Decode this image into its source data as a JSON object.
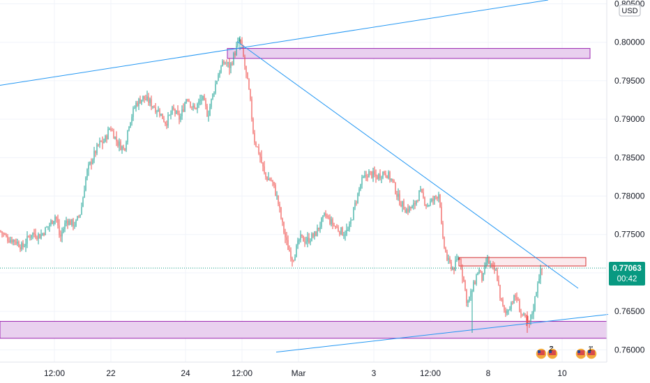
{
  "chart_data": {
    "type": "candlestick",
    "currency_label": "USD",
    "y_axis": {
      "min": 0.7575,
      "max": 0.8055,
      "ticks": [
        "0.80500",
        "0.80000",
        "0.79500",
        "0.79000",
        "0.78500",
        "0.78000",
        "0.77500",
        "0.77000",
        "0.76500",
        "0.76000"
      ],
      "tick_values": [
        0.805,
        0.8,
        0.795,
        0.79,
        0.785,
        0.78,
        0.775,
        0.77,
        0.765,
        0.76
      ]
    },
    "x_axis": {
      "ticks": [
        "12:00",
        "22",
        "24",
        "12:00",
        "Mar",
        "3",
        "12:00",
        "8",
        "10"
      ]
    },
    "current_price": {
      "value": 0.77063,
      "label": "0.77063",
      "countdown": "00:42"
    },
    "price_path": [
      [
        0,
        0.7755
      ],
      [
        10,
        0.7745
      ],
      [
        22,
        0.7742
      ],
      [
        32,
        0.7733
      ],
      [
        45,
        0.7752
      ],
      [
        58,
        0.7748
      ],
      [
        70,
        0.7762
      ],
      [
        80,
        0.7775
      ],
      [
        86,
        0.7745
      ],
      [
        95,
        0.7768
      ],
      [
        108,
        0.7763
      ],
      [
        116,
        0.778
      ],
      [
        124,
        0.783
      ],
      [
        132,
        0.7848
      ],
      [
        142,
        0.7868
      ],
      [
        150,
        0.7872
      ],
      [
        158,
        0.789
      ],
      [
        168,
        0.787
      ],
      [
        178,
        0.786
      ],
      [
        185,
        0.7895
      ],
      [
        195,
        0.792
      ],
      [
        205,
        0.7928
      ],
      [
        215,
        0.7922
      ],
      [
        228,
        0.791
      ],
      [
        238,
        0.7895
      ],
      [
        248,
        0.7912
      ],
      [
        258,
        0.79
      ],
      [
        268,
        0.793
      ],
      [
        278,
        0.7912
      ],
      [
        290,
        0.7928
      ],
      [
        298,
        0.7905
      ],
      [
        306,
        0.7935
      ],
      [
        314,
        0.7962
      ],
      [
        322,
        0.7975
      ],
      [
        330,
        0.7968
      ],
      [
        338,
        0.799
      ],
      [
        344,
        0.8005
      ],
      [
        350,
        0.7975
      ],
      [
        358,
        0.793
      ],
      [
        364,
        0.7875
      ],
      [
        372,
        0.7855
      ],
      [
        380,
        0.7825
      ],
      [
        390,
        0.782
      ],
      [
        398,
        0.7795
      ],
      [
        405,
        0.7762
      ],
      [
        412,
        0.7735
      ],
      [
        420,
        0.7718
      ],
      [
        430,
        0.7745
      ],
      [
        440,
        0.7742
      ],
      [
        452,
        0.775
      ],
      [
        466,
        0.7775
      ],
      [
        480,
        0.776
      ],
      [
        492,
        0.7752
      ],
      [
        500,
        0.7755
      ],
      [
        508,
        0.7785
      ],
      [
        518,
        0.7818
      ],
      [
        528,
        0.783
      ],
      [
        540,
        0.7825
      ],
      [
        552,
        0.7832
      ],
      [
        562,
        0.782
      ],
      [
        572,
        0.7795
      ],
      [
        582,
        0.7782
      ],
      [
        592,
        0.7785
      ],
      [
        602,
        0.7805
      ],
      [
        612,
        0.7788
      ],
      [
        622,
        0.7795
      ],
      [
        630,
        0.7805
      ],
      [
        634,
        0.7745
      ],
      [
        642,
        0.7715
      ],
      [
        650,
        0.7705
      ],
      [
        658,
        0.7722
      ],
      [
        664,
        0.7695
      ],
      [
        670,
        0.766
      ],
      [
        678,
        0.768
      ],
      [
        686,
        0.7705
      ],
      [
        692,
        0.769
      ],
      [
        698,
        0.7718
      ],
      [
        706,
        0.7705
      ],
      [
        712,
        0.77
      ],
      [
        718,
        0.7665
      ],
      [
        724,
        0.7645
      ],
      [
        732,
        0.766
      ],
      [
        740,
        0.767
      ],
      [
        746,
        0.765
      ],
      [
        752,
        0.764
      ],
      [
        758,
        0.7632
      ],
      [
        765,
        0.7655
      ],
      [
        772,
        0.7695
      ],
      [
        778,
        0.7706
      ]
    ]
  },
  "events": [
    {
      "text": "2"
    },
    {
      "text": "2"
    },
    {
      "text": "4"
    },
    {
      "text": "1"
    }
  ],
  "colors": {
    "bull": "#26a69a",
    "bear": "#ef5350",
    "trendline": "#2196f3",
    "zone_fill": "#e9d0ef",
    "zone_border": "#9c27b0",
    "resistance_fill": "#fbe9ec",
    "resistance_border": "#d32f2f",
    "price_tag": "#089981"
  }
}
